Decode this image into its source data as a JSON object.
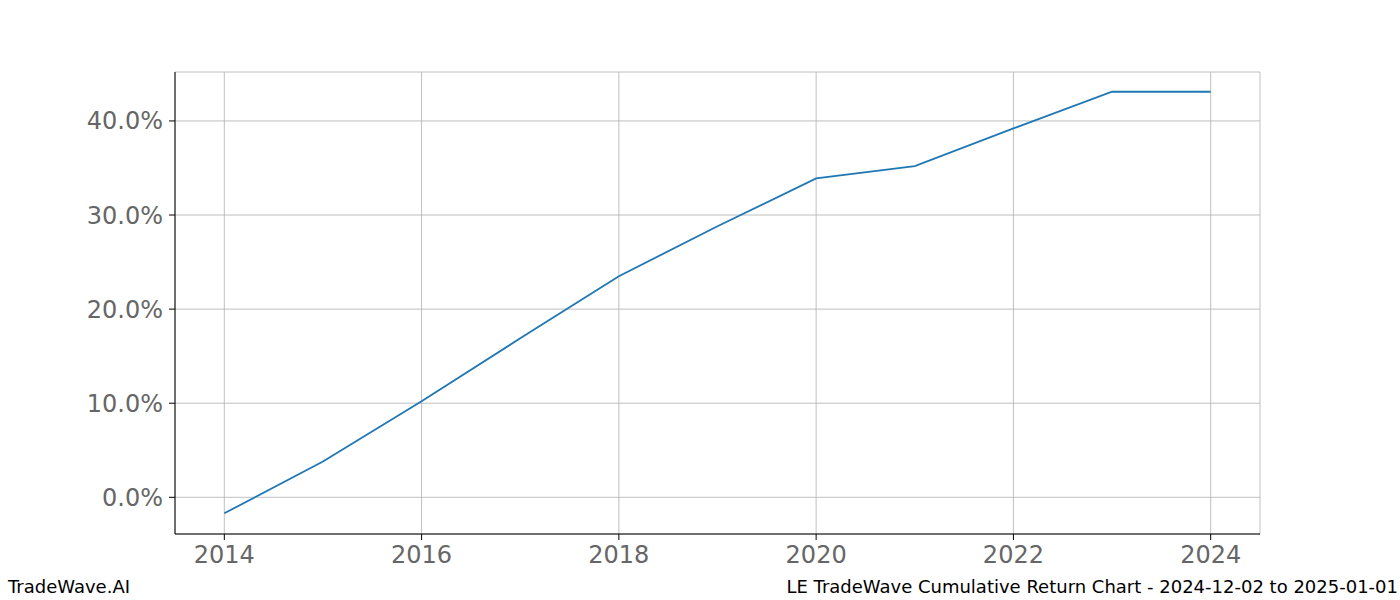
{
  "chart_data": {
    "type": "line",
    "title": "LE TradeWave Cumulative Return Chart - 2024-12-02 to 2025-01-01",
    "source": "TradeWave.AI",
    "x": [
      2014,
      2015,
      2016,
      2017,
      2018,
      2019,
      2020,
      2021,
      2022,
      2023,
      2024
    ],
    "values": [
      -1.7,
      3.8,
      10.2,
      16.9,
      23.5,
      28.8,
      33.9,
      35.2,
      39.2,
      43.1,
      43.1
    ],
    "color": "#1f77b4",
    "xlim": [
      2013.5,
      2024.5
    ],
    "xticks": [
      2014,
      2016,
      2018,
      2020,
      2022,
      2024
    ],
    "ylim": [
      -3.9,
      45.2
    ],
    "yticks": [
      {
        "value": 0,
        "label": "0.0%"
      },
      {
        "value": 10,
        "label": "10.0%"
      },
      {
        "value": 20,
        "label": "20.0%"
      },
      {
        "value": 30,
        "label": "30.0%"
      },
      {
        "value": 40,
        "label": "40.0%"
      }
    ],
    "grid": true
  }
}
